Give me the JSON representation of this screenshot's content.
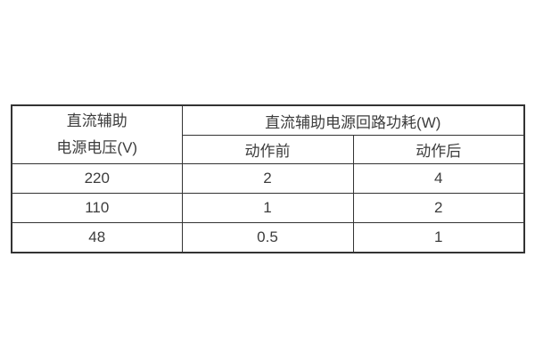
{
  "page": {
    "background_color": "#ffffff"
  },
  "table": {
    "voltage_header": {
      "line1": "直流辅助",
      "line2": "电源电压(V)"
    },
    "group_header": "直流辅助电源回路功耗(W)",
    "sub_headers": {
      "before": "动作前",
      "after": "动作后"
    },
    "rows": [
      {
        "voltage": "220",
        "before": "2",
        "after": "4"
      },
      {
        "voltage": "110",
        "before": "1",
        "after": "2"
      },
      {
        "voltage": "48",
        "before": "0.5",
        "after": "1"
      }
    ],
    "colors": {
      "border": "#333333",
      "text": "#3d3d3d"
    }
  },
  "chart_data": {
    "type": "table",
    "title": "直流辅助电源回路功耗(W)",
    "columns": [
      "直流辅助电源电压(V)",
      "动作前",
      "动作后"
    ],
    "rows": [
      [
        "220",
        "2",
        "4"
      ],
      [
        "110",
        "1",
        "2"
      ],
      [
        "48",
        "0.5",
        "1"
      ]
    ]
  }
}
